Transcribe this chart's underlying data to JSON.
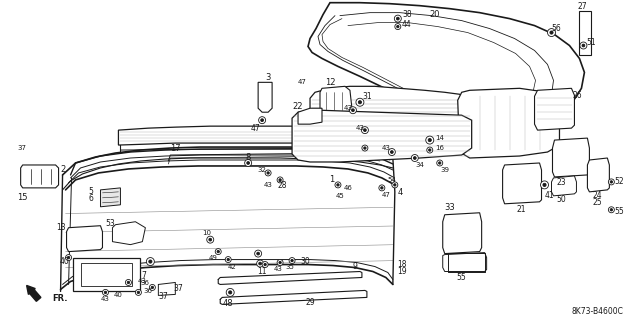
{
  "bg_color": "#ffffff",
  "line_color": "#1a1a1a",
  "diagram_code": "8K73-B4600C",
  "fig_width": 6.4,
  "fig_height": 3.19,
  "dpi": 100
}
